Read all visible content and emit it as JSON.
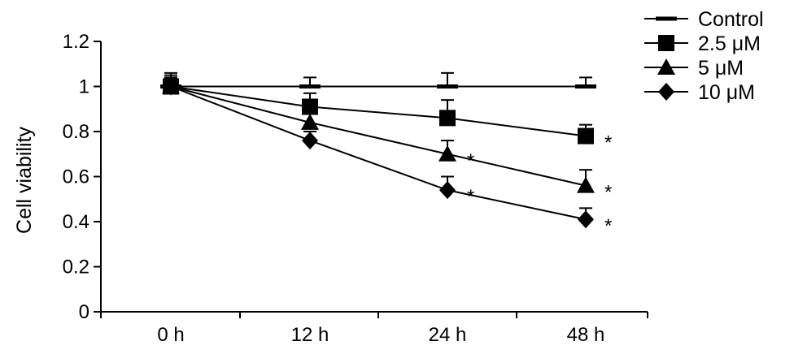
{
  "chart_data": {
    "type": "line",
    "title": "",
    "xlabel": "",
    "ylabel": "Cell viability",
    "ylim": [
      0,
      1.2
    ],
    "yticks": [
      "0",
      "0.2",
      "0.4",
      "0.6",
      "0.8",
      "1",
      "1.2"
    ],
    "ytick_values": [
      0,
      0.2,
      0.4,
      0.6,
      0.8,
      1.0,
      1.2
    ],
    "categories": [
      "0 h",
      "12 h",
      "24 h",
      "48 h"
    ],
    "grid": false,
    "legend_position": "top-right",
    "significance_marker": "*",
    "series": [
      {
        "name": "Control",
        "marker": "bar",
        "values": [
          1.0,
          1.0,
          1.0,
          1.0
        ],
        "errors": [
          0.06,
          0.04,
          0.06,
          0.04
        ],
        "significant": [
          false,
          false,
          false,
          false
        ]
      },
      {
        "name": "2.5 μM",
        "marker": "square",
        "values": [
          1.0,
          0.91,
          0.86,
          0.78
        ],
        "errors": [
          0.05,
          0.06,
          0.08,
          0.05
        ],
        "significant": [
          false,
          false,
          false,
          true
        ]
      },
      {
        "name": "5 μM",
        "marker": "triangle",
        "values": [
          1.0,
          0.84,
          0.7,
          0.56
        ],
        "errors": [
          0.04,
          0.05,
          0.06,
          0.07
        ],
        "significant": [
          false,
          false,
          true,
          true
        ]
      },
      {
        "name": "10 μM",
        "marker": "diamond",
        "values": [
          1.0,
          0.76,
          0.54,
          0.41
        ],
        "errors": [
          0.04,
          0.04,
          0.06,
          0.05
        ],
        "significant": [
          false,
          false,
          true,
          true
        ]
      }
    ]
  }
}
